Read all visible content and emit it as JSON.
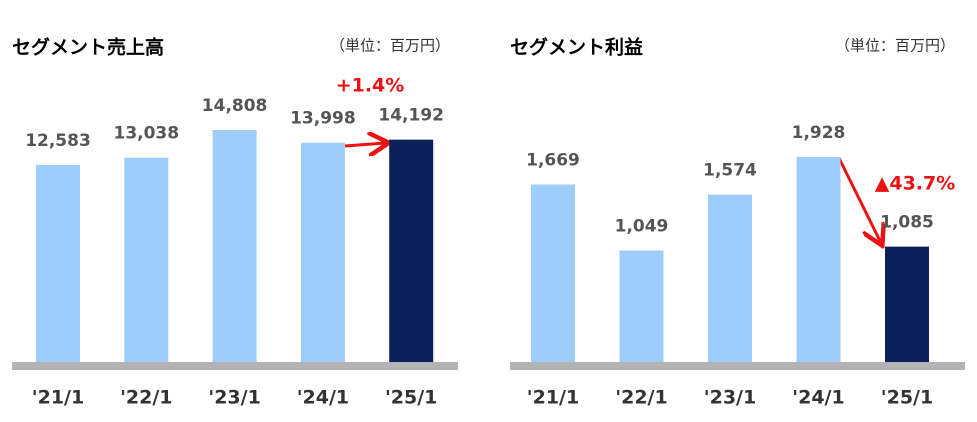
{
  "chart_data": [
    {
      "type": "bar",
      "title": "セグメント売上高",
      "subtitle": "（単位：百万円）",
      "categories": [
        "'21/1",
        "'22/1",
        "'23/1",
        "'24/1",
        "'25/1"
      ],
      "values": [
        12583,
        13038,
        14808,
        13998,
        14192
      ],
      "value_labels": [
        "12,583",
        "13,038",
        "14,808",
        "13,998",
        "14,192"
      ],
      "colors": [
        "#9fcdfb",
        "#9fcdfb",
        "#9fcdfb",
        "#9fcdfb",
        "#0b1f5a"
      ],
      "annotation": "+1.4%"
    },
    {
      "type": "bar",
      "title": "セグメント利益",
      "subtitle": "（単位：百万円）",
      "categories": [
        "'21/1",
        "'22/1",
        "'23/1",
        "'24/1",
        "'25/1"
      ],
      "values": [
        1669,
        1049,
        1574,
        1928,
        1085
      ],
      "value_labels": [
        "1,669",
        "1,049",
        "1,574",
        "1,928",
        "1,085"
      ],
      "colors": [
        "#9fcdfb",
        "#9fcdfb",
        "#9fcdfb",
        "#9fcdfb",
        "#0b1f5a"
      ],
      "annotation": "▲43.7%"
    }
  ]
}
